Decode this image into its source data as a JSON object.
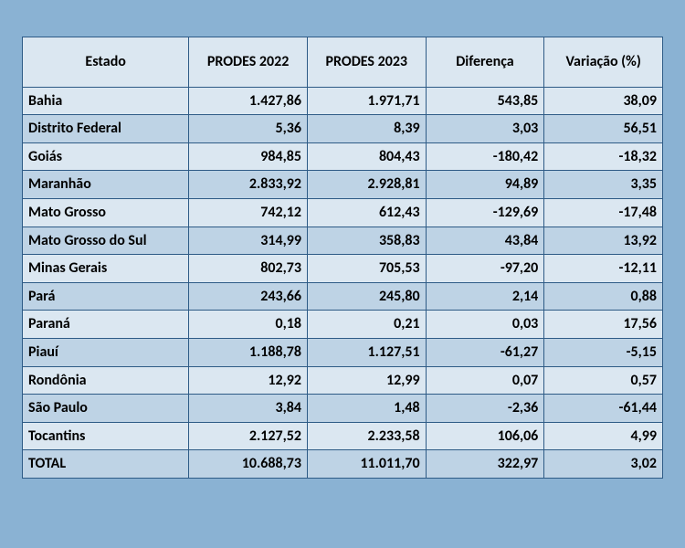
{
  "page": {
    "background_color": "#8ab2d3"
  },
  "table": {
    "type": "table",
    "header_bg": "#dbe7f1",
    "row_bg_even": "#dbe7f1",
    "row_bg_odd": "#bed3e5",
    "border_color": "#2e5b86",
    "text_color": "#000000",
    "header_fontsize": 16,
    "cell_fontsize": 16,
    "columns": [
      {
        "key": "estado",
        "label": "Estado",
        "align": "center"
      },
      {
        "key": "p2022",
        "label": "PRODES 2022",
        "align": "center"
      },
      {
        "key": "p2023",
        "label": "PRODES 2023",
        "align": "center"
      },
      {
        "key": "dif",
        "label": "Diferença",
        "align": "center"
      },
      {
        "key": "var",
        "label": "Variação (%)",
        "align": "center"
      }
    ],
    "rows": [
      {
        "estado": "Bahia",
        "p2022": "1.427,86",
        "p2023": "1.971,71",
        "dif": "543,85",
        "var": "38,09"
      },
      {
        "estado": "Distrito Federal",
        "p2022": "5,36",
        "p2023": "8,39",
        "dif": "3,03",
        "var": "56,51"
      },
      {
        "estado": "Goiás",
        "p2022": "984,85",
        "p2023": "804,43",
        "dif": "-180,42",
        "var": "-18,32"
      },
      {
        "estado": "Maranhão",
        "p2022": "2.833,92",
        "p2023": "2.928,81",
        "dif": "94,89",
        "var": "3,35"
      },
      {
        "estado": "Mato Grosso",
        "p2022": "742,12",
        "p2023": "612,43",
        "dif": "-129,69",
        "var": "-17,48"
      },
      {
        "estado": "Mato Grosso do Sul",
        "p2022": "314,99",
        "p2023": "358,83",
        "dif": "43,84",
        "var": "13,92"
      },
      {
        "estado": "Minas Gerais",
        "p2022": "802,73",
        "p2023": "705,53",
        "dif": "-97,20",
        "var": "-12,11"
      },
      {
        "estado": "Pará",
        "p2022": "243,66",
        "p2023": "245,80",
        "dif": "2,14",
        "var": "0,88"
      },
      {
        "estado": "Paraná",
        "p2022": "0,18",
        "p2023": "0,21",
        "dif": "0,03",
        "var": "17,56"
      },
      {
        "estado": "Piauí",
        "p2022": "1.188,78",
        "p2023": "1.127,51",
        "dif": "-61,27",
        "var": "-5,15"
      },
      {
        "estado": "Rondônia",
        "p2022": "12,92",
        "p2023": "12,99",
        "dif": "0,07",
        "var": "0,57"
      },
      {
        "estado": "São Paulo",
        "p2022": "3,84",
        "p2023": "1,48",
        "dif": "-2,36",
        "var": "-61,44"
      },
      {
        "estado": "Tocantins",
        "p2022": "2.127,52",
        "p2023": "2.233,58",
        "dif": "106,06",
        "var": "4,99"
      }
    ],
    "total": {
      "estado": "TOTAL",
      "p2022": "10.688,73",
      "p2023": "11.011,70",
      "dif": "322,97",
      "var": "3,02"
    }
  }
}
